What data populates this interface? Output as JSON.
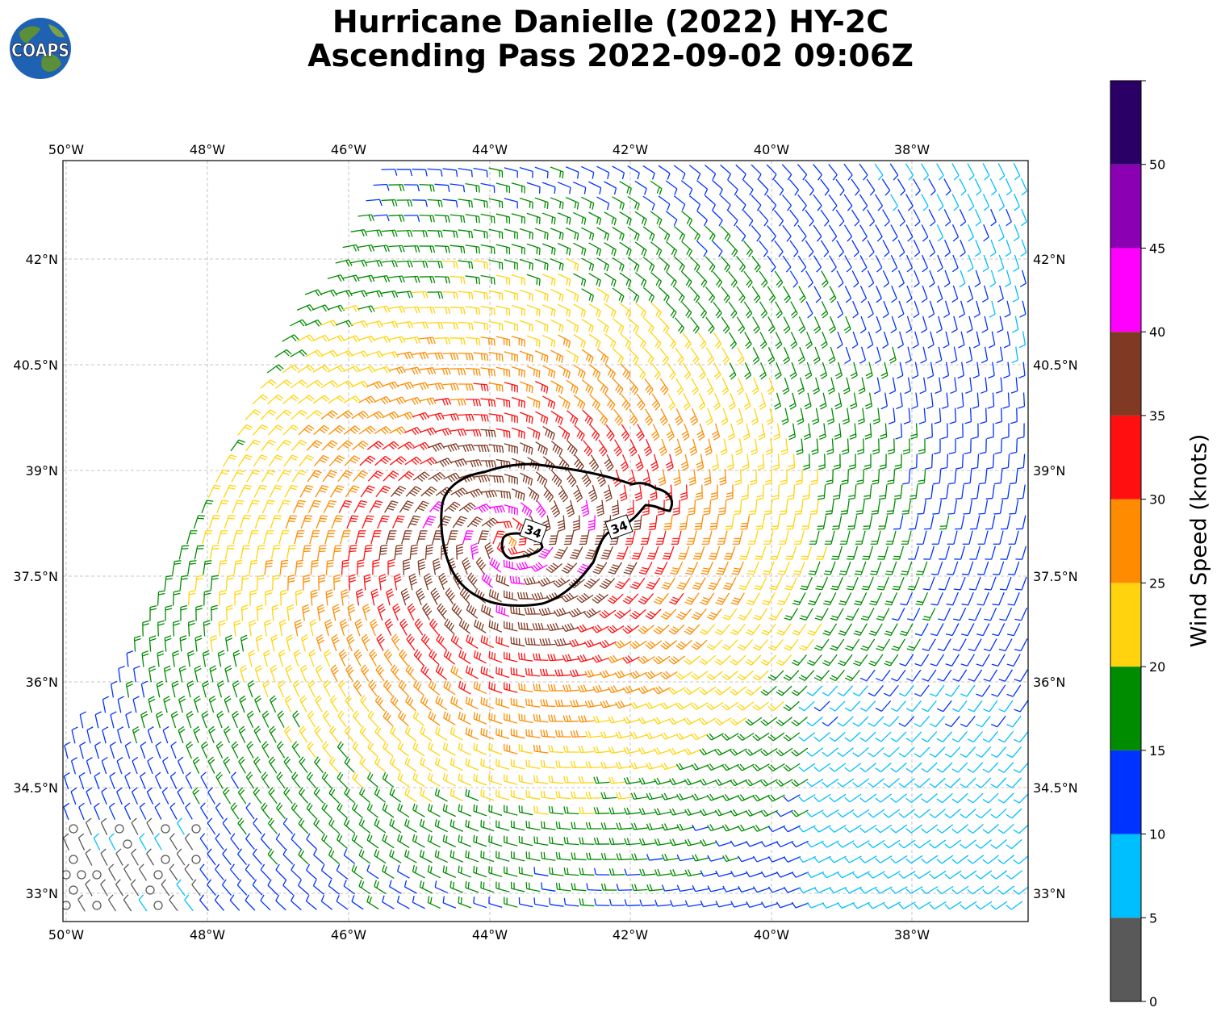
{
  "logo_text": "COAPS",
  "title_line1": "Hurricane Danielle (2022) HY-2C",
  "title_line2": "Ascending Pass 2022-09-02 09:06Z",
  "lon_ticks": [
    "50°W",
    "48°W",
    "46°W",
    "44°W",
    "42°W",
    "40°W",
    "38°W"
  ],
  "lat_ticks": [
    "42°N",
    "40.5°N",
    "39°N",
    "37.5°N",
    "36°N",
    "34.5°N",
    "33°N"
  ],
  "colorbar": {
    "label": "Wind Speed (knots)",
    "ticks": [
      "0",
      "5",
      "10",
      "15",
      "20",
      "25",
      "30",
      "35",
      "40",
      "45",
      "50"
    ],
    "bins": [
      {
        "min": 0,
        "max": 5,
        "color": "#595959"
      },
      {
        "min": 5,
        "max": 10,
        "color": "#00bfff"
      },
      {
        "min": 10,
        "max": 15,
        "color": "#0033ff"
      },
      {
        "min": 15,
        "max": 20,
        "color": "#008c00"
      },
      {
        "min": 20,
        "max": 25,
        "color": "#ffd40f"
      },
      {
        "min": 25,
        "max": 30,
        "color": "#ff8c00"
      },
      {
        "min": 30,
        "max": 35,
        "color": "#ff0f0f"
      },
      {
        "min": 35,
        "max": 40,
        "color": "#803a24"
      },
      {
        "min": 40,
        "max": 45,
        "color": "#ff00ff"
      },
      {
        "min": 45,
        "max": 50,
        "color": "#8c00b3"
      },
      {
        "min": 50,
        "max": 55,
        "color": "#2b0066"
      }
    ]
  },
  "contour_label": "34",
  "map": {
    "lon_range": [
      -50,
      -36.3
    ],
    "lat_range": [
      32.6,
      43.4
    ],
    "storm_center": {
      "lon": -43.6,
      "lat": 38.15
    }
  }
}
